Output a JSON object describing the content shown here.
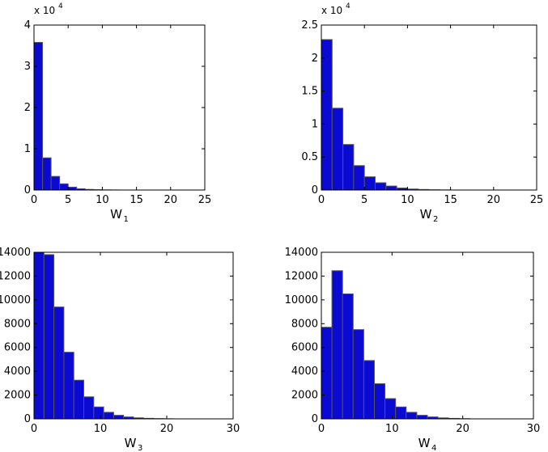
{
  "chart_data": [
    {
      "type": "bar",
      "xlabel": "W",
      "xlabel_subscript": "1",
      "y_exponent_base": "x 10",
      "y_exponent_power": "4",
      "bar_color": "#0a0ad2",
      "bar_edge_color": "#555555",
      "xlim": [
        0,
        25
      ],
      "ylim": [
        0,
        4
      ],
      "x_ticks": [
        0,
        5,
        10,
        15,
        20,
        25
      ],
      "y_ticks": [
        0,
        1,
        2,
        3,
        4
      ],
      "bin_width": 1.25,
      "bins": [
        {
          "x": 0.0,
          "value": 3.58
        },
        {
          "x": 1.25,
          "value": 0.78
        },
        {
          "x": 2.5,
          "value": 0.33
        },
        {
          "x": 3.75,
          "value": 0.15
        },
        {
          "x": 5.0,
          "value": 0.07
        },
        {
          "x": 6.25,
          "value": 0.03
        },
        {
          "x": 7.5,
          "value": 0.015
        },
        {
          "x": 8.75,
          "value": 0.008
        },
        {
          "x": 10.0,
          "value": 0.004
        },
        {
          "x": 11.25,
          "value": 0.002
        }
      ]
    },
    {
      "type": "bar",
      "xlabel": "W",
      "xlabel_subscript": "2",
      "y_exponent_base": "x 10",
      "y_exponent_power": "4",
      "bar_color": "#0a0ad2",
      "bar_edge_color": "#555555",
      "xlim": [
        0,
        25
      ],
      "ylim": [
        0,
        2.5
      ],
      "x_ticks": [
        0,
        5,
        10,
        15,
        20,
        25
      ],
      "y_ticks": [
        0,
        0.5,
        1,
        1.5,
        2,
        2.5
      ],
      "y_tick_labels": [
        "0",
        "0.5",
        "1",
        "1.5",
        "2",
        "2.5"
      ],
      "bin_width": 1.25,
      "bins": [
        {
          "x": 0.0,
          "value": 2.28
        },
        {
          "x": 1.25,
          "value": 1.24
        },
        {
          "x": 2.5,
          "value": 0.69
        },
        {
          "x": 3.75,
          "value": 0.37
        },
        {
          "x": 5.0,
          "value": 0.2
        },
        {
          "x": 6.25,
          "value": 0.11
        },
        {
          "x": 7.5,
          "value": 0.06
        },
        {
          "x": 8.75,
          "value": 0.03
        },
        {
          "x": 10.0,
          "value": 0.015
        },
        {
          "x": 11.25,
          "value": 0.008
        },
        {
          "x": 12.5,
          "value": 0.004
        },
        {
          "x": 13.75,
          "value": 0.002
        }
      ]
    },
    {
      "type": "bar",
      "xlabel": "W",
      "xlabel_subscript": "3",
      "bar_color": "#0a0ad2",
      "bar_edge_color": "#555555",
      "xlim": [
        0,
        30
      ],
      "ylim": [
        0,
        14000
      ],
      "x_ticks": [
        0,
        10,
        20,
        30
      ],
      "y_ticks": [
        0,
        2000,
        4000,
        6000,
        8000,
        10000,
        12000,
        14000
      ],
      "bin_width": 1.5,
      "bins": [
        {
          "x": 0.0,
          "value": 14000
        },
        {
          "x": 1.5,
          "value": 13800
        },
        {
          "x": 3.0,
          "value": 9400
        },
        {
          "x": 4.5,
          "value": 5600
        },
        {
          "x": 6.0,
          "value": 3250
        },
        {
          "x": 7.5,
          "value": 1850
        },
        {
          "x": 9.0,
          "value": 1000
        },
        {
          "x": 10.5,
          "value": 550
        },
        {
          "x": 12.0,
          "value": 300
        },
        {
          "x": 13.5,
          "value": 160
        },
        {
          "x": 15.0,
          "value": 85
        },
        {
          "x": 16.5,
          "value": 45
        },
        {
          "x": 18.0,
          "value": 22
        },
        {
          "x": 19.5,
          "value": 10
        }
      ]
    },
    {
      "type": "bar",
      "xlabel": "W",
      "xlabel_subscript": "4",
      "bar_color": "#0a0ad2",
      "bar_edge_color": "#555555",
      "xlim": [
        0,
        30
      ],
      "ylim": [
        0,
        14000
      ],
      "x_ticks": [
        0,
        10,
        20,
        30
      ],
      "y_ticks": [
        0,
        2000,
        4000,
        6000,
        8000,
        10000,
        12000,
        14000
      ],
      "bin_width": 1.5,
      "bins": [
        {
          "x": 0.0,
          "value": 7700
        },
        {
          "x": 1.5,
          "value": 12450
        },
        {
          "x": 3.0,
          "value": 10500
        },
        {
          "x": 4.5,
          "value": 7500
        },
        {
          "x": 6.0,
          "value": 4900
        },
        {
          "x": 7.5,
          "value": 2950
        },
        {
          "x": 9.0,
          "value": 1700
        },
        {
          "x": 10.5,
          "value": 1000
        },
        {
          "x": 12.0,
          "value": 550
        },
        {
          "x": 13.5,
          "value": 300
        },
        {
          "x": 15.0,
          "value": 160
        },
        {
          "x": 16.5,
          "value": 80
        },
        {
          "x": 18.0,
          "value": 40
        },
        {
          "x": 19.5,
          "value": 18
        }
      ]
    }
  ]
}
